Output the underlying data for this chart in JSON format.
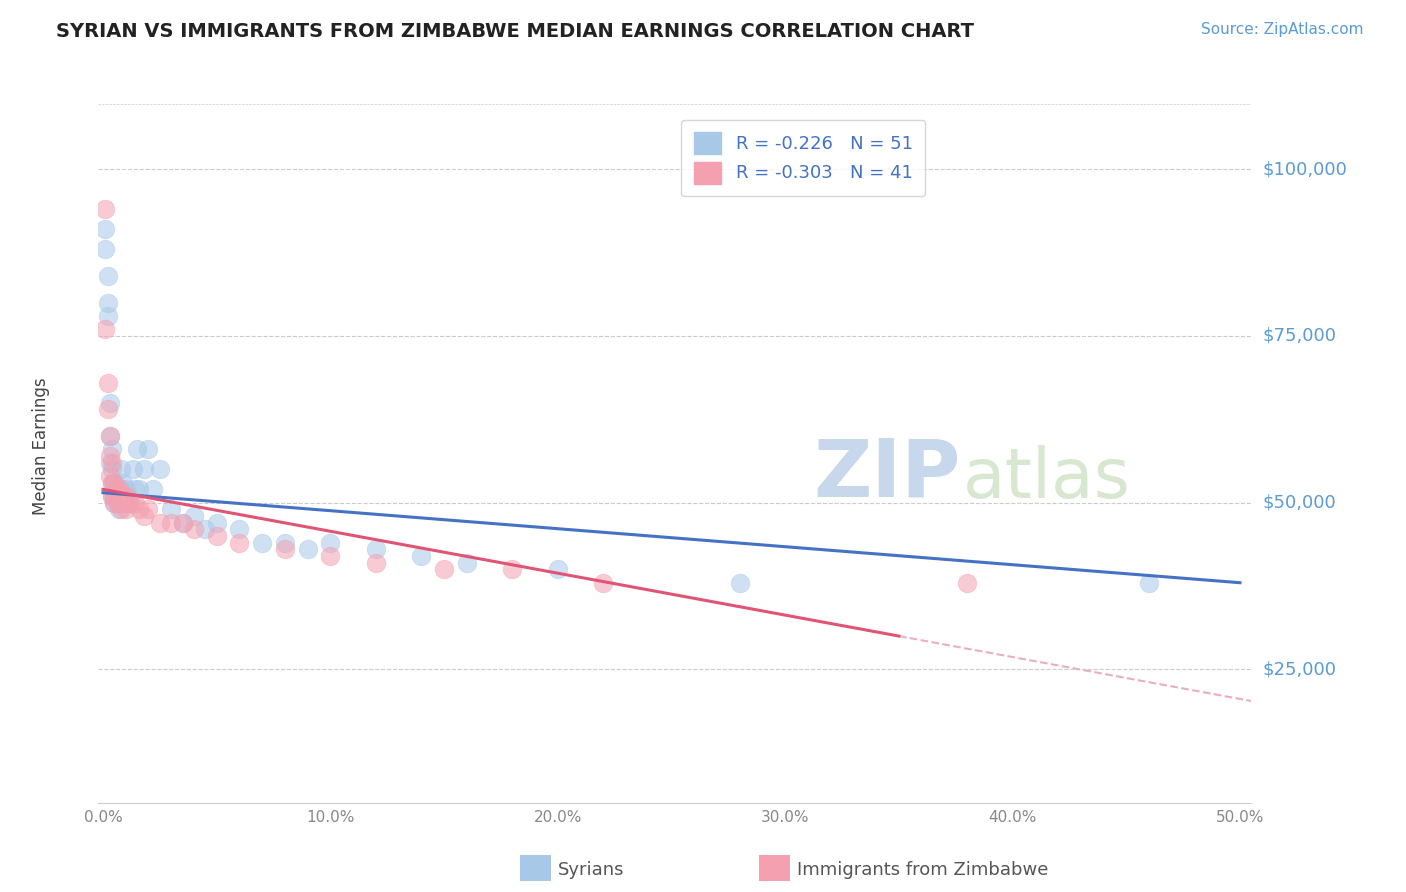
{
  "title": "SYRIAN VS IMMIGRANTS FROM ZIMBABWE MEDIAN EARNINGS CORRELATION CHART",
  "source": "Source: ZipAtlas.com",
  "ylabel": "Median Earnings",
  "ytick_labels": [
    "$25,000",
    "$50,000",
    "$75,000",
    "$100,000"
  ],
  "ytick_values": [
    25000,
    50000,
    75000,
    100000
  ],
  "ylim": [
    5000,
    112000
  ],
  "xlim": [
    -0.002,
    0.505
  ],
  "legend_syrians": "R = -0.226   N = 51",
  "legend_zimbabwe": "R = -0.303   N = 41",
  "watermark_zip": "ZIP",
  "watermark_atlas": "atlas",
  "syrians_color": "#a8c8e8",
  "zimbabwe_color": "#f4a0b0",
  "syrians_line_color": "#4472c4",
  "zimbabwe_line_color": "#e05575",
  "zimbabwe_dash_color": "#e8b0bc",
  "syrians_x": [
    0.001,
    0.001,
    0.002,
    0.002,
    0.002,
    0.003,
    0.003,
    0.003,
    0.004,
    0.004,
    0.004,
    0.004,
    0.005,
    0.005,
    0.005,
    0.006,
    0.006,
    0.006,
    0.007,
    0.007,
    0.008,
    0.008,
    0.009,
    0.009,
    0.01,
    0.011,
    0.012,
    0.013,
    0.014,
    0.015,
    0.016,
    0.018,
    0.02,
    0.022,
    0.025,
    0.03,
    0.035,
    0.04,
    0.045,
    0.05,
    0.06,
    0.07,
    0.08,
    0.09,
    0.1,
    0.12,
    0.14,
    0.16,
    0.2,
    0.28,
    0.46
  ],
  "syrians_y": [
    91000,
    88000,
    84000,
    80000,
    78000,
    65000,
    60000,
    56000,
    58000,
    55000,
    53000,
    51000,
    53000,
    51000,
    50000,
    52000,
    51000,
    50000,
    52000,
    49000,
    55000,
    52000,
    53000,
    50000,
    52000,
    51000,
    50000,
    55000,
    52000,
    58000,
    52000,
    55000,
    58000,
    52000,
    55000,
    49000,
    47000,
    48000,
    46000,
    47000,
    46000,
    44000,
    44000,
    43000,
    44000,
    43000,
    42000,
    41000,
    40000,
    38000,
    38000
  ],
  "zimbabwe_x": [
    0.001,
    0.001,
    0.002,
    0.002,
    0.003,
    0.003,
    0.003,
    0.004,
    0.004,
    0.004,
    0.005,
    0.005,
    0.005,
    0.006,
    0.006,
    0.007,
    0.007,
    0.008,
    0.008,
    0.009,
    0.01,
    0.01,
    0.011,
    0.012,
    0.014,
    0.016,
    0.018,
    0.02,
    0.025,
    0.03,
    0.035,
    0.04,
    0.05,
    0.06,
    0.08,
    0.1,
    0.12,
    0.15,
    0.18,
    0.22,
    0.38
  ],
  "zimbabwe_y": [
    94000,
    76000,
    68000,
    64000,
    60000,
    57000,
    54000,
    56000,
    53000,
    51000,
    53000,
    51000,
    50000,
    52000,
    51000,
    52000,
    50000,
    51000,
    49000,
    51000,
    51000,
    49000,
    50000,
    50000,
    50000,
    49000,
    48000,
    49000,
    47000,
    47000,
    47000,
    46000,
    45000,
    44000,
    43000,
    42000,
    41000,
    40000,
    40000,
    38000,
    38000
  ]
}
